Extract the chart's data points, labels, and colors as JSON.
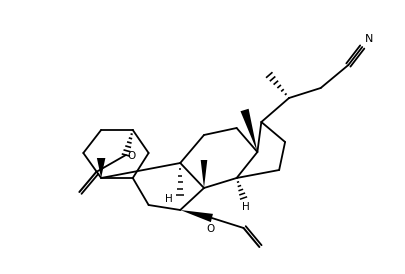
{
  "figsize": [
    4.06,
    2.74
  ],
  "dpi": 100,
  "bg": "#ffffff",
  "lc": "#000000",
  "lw": 1.3,
  "xlim": [
    0.0,
    8.5
  ],
  "ylim": [
    0.0,
    5.8
  ]
}
